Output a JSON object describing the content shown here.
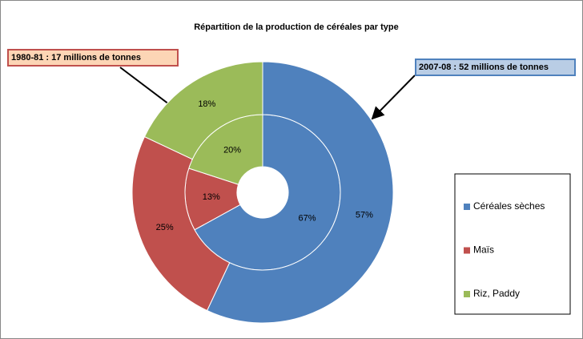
{
  "chart_data": {
    "type": "doughnut",
    "title": "Répartition de la production de céréales par type",
    "categories": [
      "Céréales sèches",
      "Maïs",
      "Riz, Paddy"
    ],
    "colors": [
      "#4f81bd",
      "#c0504d",
      "#9bbb59"
    ],
    "series": [
      {
        "name": "1980-81 : 17 millions de tonnes",
        "values": [
          67,
          13,
          20
        ],
        "value_labels": [
          "67%",
          "13%",
          "20%"
        ]
      },
      {
        "name": "2007-08 : 52 millions de tonnes",
        "values": [
          57,
          25,
          18
        ],
        "value_labels": [
          "57%",
          "25%",
          "18%"
        ]
      }
    ],
    "legend": "right"
  }
}
